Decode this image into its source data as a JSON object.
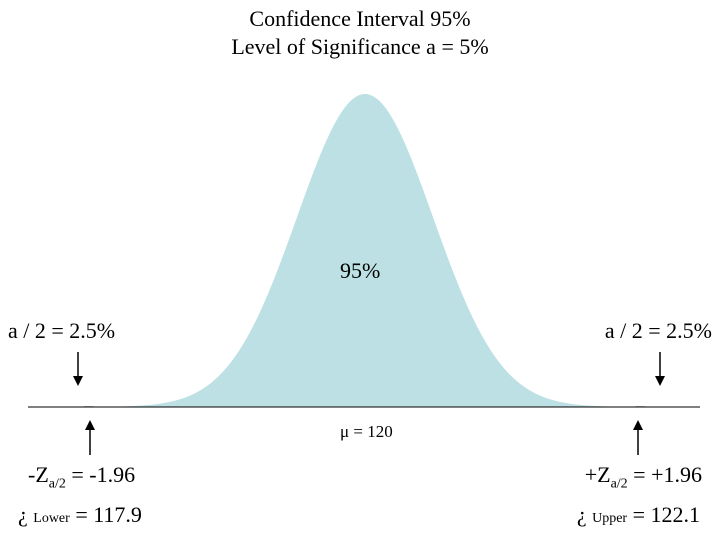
{
  "title": {
    "line1": "Confidence Interval    95%",
    "line2": "Level of Significance  a = 5%"
  },
  "center_label": "95%",
  "left_tail": {
    "label": "a / 2 = 2.5%",
    "z_sign": "-Z",
    "z_sub": "a/2",
    "z_eq": "= -1.96",
    "bound_symbol": "¿",
    "bound_sub": "Lower",
    "bound_value": "= 117.9"
  },
  "right_tail": {
    "label": "a / 2 = 2.5%",
    "z_sign": "+Z",
    "z_sub": "a/2",
    "z_eq": "= +1.96",
    "bound_symbol": "¿",
    "bound_sub": "Upper",
    "bound_value": "= 122.1"
  },
  "mean": {
    "symbol": "μ",
    "eq": "=",
    "value": "120"
  },
  "colors": {
    "curve_fill": "#bce0e3",
    "tail_fill": "#ffffff",
    "line": "#000000"
  },
  "icons": {
    "down_arrow": "down-arrow-icon",
    "up_arrow": "up-arrow-icon"
  }
}
